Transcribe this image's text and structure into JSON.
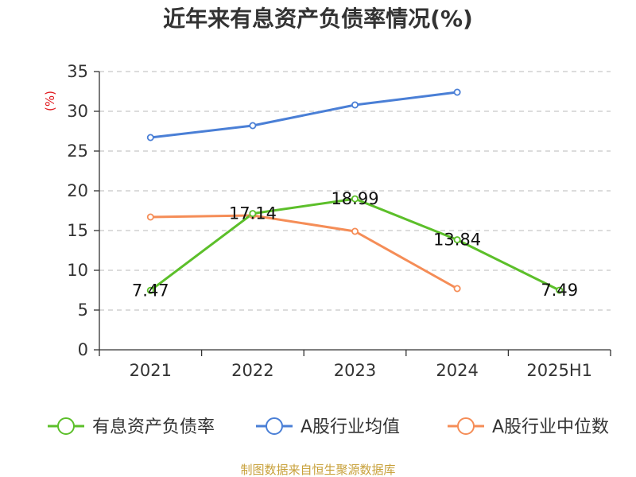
{
  "chart_data": {
    "type": "line",
    "title": "近年来有息资产负债率情况(%)",
    "ylabel": "(%)",
    "xlabel": "",
    "categories": [
      "2021",
      "2022",
      "2023",
      "2024",
      "2025H1"
    ],
    "ylim": [
      0,
      35
    ],
    "yticks": [
      0,
      5,
      10,
      15,
      20,
      25,
      30,
      35
    ],
    "grid": true,
    "legend_position": "bottom",
    "series": [
      {
        "name": "有息资产负债率",
        "color": "#5cbf2a",
        "values": [
          7.47,
          17.14,
          18.99,
          13.84,
          7.49
        ],
        "labels": [
          "7.47",
          "17.14",
          "18.99",
          "13.84",
          "7.49"
        ]
      },
      {
        "name": "A股行业均值",
        "color": "#4a7fd6",
        "values": [
          26.7,
          28.2,
          30.8,
          32.4,
          null
        ]
      },
      {
        "name": "A股行业中位数",
        "color": "#f58d57",
        "values": [
          16.7,
          16.9,
          14.9,
          7.7,
          null
        ]
      }
    ]
  },
  "source": "制图数据来自恒生聚源数据库"
}
